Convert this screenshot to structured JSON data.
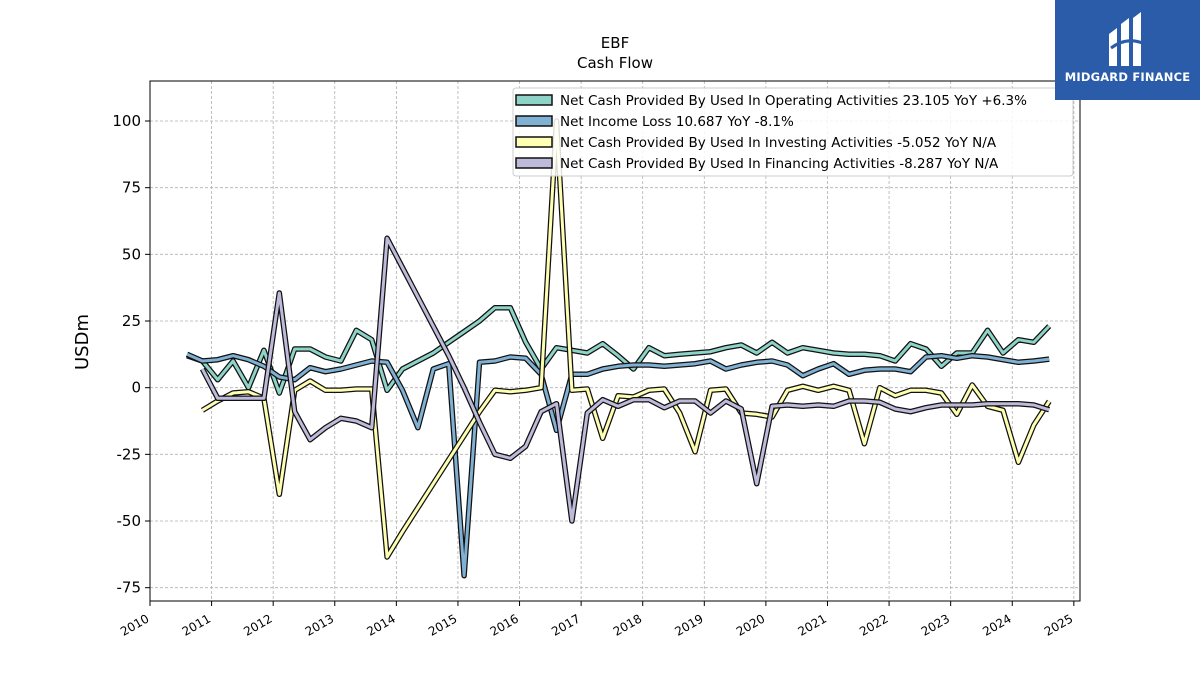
{
  "chart_data": {
    "type": "line",
    "title": "EBF",
    "subtitle": "Cash Flow",
    "ylabel": "USDm",
    "xlabel": "",
    "xlim": [
      2010.0,
      2025.1
    ],
    "ylim": [
      -80,
      115
    ],
    "x_ticks": [
      2010,
      2011,
      2012,
      2013,
      2014,
      2015,
      2016,
      2017,
      2018,
      2019,
      2020,
      2021,
      2022,
      2023,
      2024,
      2025
    ],
    "y_ticks": [
      100,
      75,
      50,
      25,
      0,
      -25,
      -50,
      -75
    ],
    "grid": true,
    "legend_position": "top-right",
    "series": [
      {
        "name": "Net Cash Provided By Used In Operating Activities  23.105 YoY +6.3%",
        "color": "#8dd3c7",
        "points": [
          [
            2010.6,
            12
          ],
          [
            2010.85,
            10
          ],
          [
            2011.1,
            3
          ],
          [
            2011.35,
            10
          ],
          [
            2011.6,
            0
          ],
          [
            2011.85,
            14
          ],
          [
            2012.1,
            -2
          ],
          [
            2012.35,
            14.5
          ],
          [
            2012.6,
            14.5
          ],
          [
            2012.85,
            11.5
          ],
          [
            2013.1,
            10
          ],
          [
            2013.35,
            21.5
          ],
          [
            2013.6,
            18
          ],
          [
            2013.85,
            -1
          ],
          [
            2014.1,
            7
          ],
          [
            2014.35,
            10
          ],
          [
            2014.6,
            13
          ],
          [
            2014.85,
            17
          ],
          [
            2015.1,
            21
          ],
          [
            2015.35,
            25
          ],
          [
            2015.6,
            30
          ],
          [
            2015.85,
            30
          ],
          [
            2016.1,
            17
          ],
          [
            2016.35,
            7
          ],
          [
            2016.6,
            15
          ],
          [
            2016.85,
            14
          ],
          [
            2017.1,
            13
          ],
          [
            2017.35,
            16.5
          ],
          [
            2017.6,
            12
          ],
          [
            2017.85,
            7
          ],
          [
            2018.1,
            15
          ],
          [
            2018.35,
            12
          ],
          [
            2018.6,
            12.5
          ],
          [
            2018.85,
            13
          ],
          [
            2019.1,
            13.5
          ],
          [
            2019.35,
            15
          ],
          [
            2019.6,
            16
          ],
          [
            2019.85,
            13
          ],
          [
            2020.1,
            17
          ],
          [
            2020.35,
            13
          ],
          [
            2020.6,
            15
          ],
          [
            2020.85,
            14
          ],
          [
            2021.1,
            13
          ],
          [
            2021.35,
            12.5
          ],
          [
            2021.6,
            12.5
          ],
          [
            2021.85,
            12
          ],
          [
            2022.1,
            10
          ],
          [
            2022.35,
            16.5
          ],
          [
            2022.6,
            14.5
          ],
          [
            2022.85,
            8
          ],
          [
            2023.1,
            13
          ],
          [
            2023.35,
            13
          ],
          [
            2023.6,
            21.5
          ],
          [
            2023.85,
            13
          ],
          [
            2024.1,
            18
          ],
          [
            2024.35,
            17
          ],
          [
            2024.6,
            23.1
          ]
        ]
      },
      {
        "name": "Net Income Loss  10.687 YoY -8.1%",
        "color": "#80b1d3",
        "points": [
          [
            2010.6,
            12.5
          ],
          [
            2010.85,
            10
          ],
          [
            2011.1,
            10.5
          ],
          [
            2011.35,
            12
          ],
          [
            2011.6,
            10.5
          ],
          [
            2011.85,
            8
          ],
          [
            2012.1,
            4
          ],
          [
            2012.35,
            3
          ],
          [
            2012.6,
            7.5
          ],
          [
            2012.85,
            6
          ],
          [
            2013.1,
            7
          ],
          [
            2013.35,
            8.5
          ],
          [
            2013.6,
            10
          ],
          [
            2013.85,
            9.5
          ],
          [
            2014.1,
            -1
          ],
          [
            2014.35,
            -15
          ],
          [
            2014.6,
            7
          ],
          [
            2014.85,
            9
          ],
          [
            2015.1,
            -70.5
          ],
          [
            2015.35,
            9.5
          ],
          [
            2015.6,
            10
          ],
          [
            2015.85,
            11.5
          ],
          [
            2016.1,
            11
          ],
          [
            2016.35,
            5
          ],
          [
            2016.6,
            -16
          ],
          [
            2016.85,
            5
          ],
          [
            2017.1,
            5
          ],
          [
            2017.35,
            7
          ],
          [
            2017.6,
            8
          ],
          [
            2017.85,
            8.5
          ],
          [
            2018.1,
            8.5
          ],
          [
            2018.35,
            8
          ],
          [
            2018.6,
            8.5
          ],
          [
            2018.85,
            9
          ],
          [
            2019.1,
            10
          ],
          [
            2019.35,
            7
          ],
          [
            2019.6,
            8.5
          ],
          [
            2019.85,
            9.5
          ],
          [
            2020.1,
            10
          ],
          [
            2020.35,
            8.5
          ],
          [
            2020.6,
            4.5
          ],
          [
            2020.85,
            7
          ],
          [
            2021.1,
            9
          ],
          [
            2021.35,
            5
          ],
          [
            2021.6,
            6.5
          ],
          [
            2021.85,
            7
          ],
          [
            2022.1,
            7
          ],
          [
            2022.35,
            6
          ],
          [
            2022.6,
            11.5
          ],
          [
            2022.85,
            12
          ],
          [
            2023.1,
            11
          ],
          [
            2023.35,
            12
          ],
          [
            2023.6,
            11.5
          ],
          [
            2023.85,
            10.5
          ],
          [
            2024.1,
            9.5
          ],
          [
            2024.35,
            10
          ],
          [
            2024.6,
            10.7
          ]
        ]
      },
      {
        "name": "Net Cash Provided By Used In Investing Activities  -5.052 YoY N/A",
        "color": "#ffffb3",
        "points": [
          [
            2010.85,
            -8.5
          ],
          [
            2011.1,
            -5
          ],
          [
            2011.35,
            -2
          ],
          [
            2011.6,
            -1.5
          ],
          [
            2011.85,
            -4
          ],
          [
            2012.1,
            -40
          ],
          [
            2012.35,
            -1
          ],
          [
            2012.6,
            2.5
          ],
          [
            2012.85,
            -1
          ],
          [
            2013.1,
            -1
          ],
          [
            2013.35,
            -0.5
          ],
          [
            2013.6,
            -0.5
          ],
          [
            2013.85,
            -63.5
          ],
          [
            2014.1,
            -54
          ],
          [
            2014.35,
            -45
          ],
          [
            2014.6,
            -36
          ],
          [
            2014.85,
            -27
          ],
          [
            2015.1,
            -18
          ],
          [
            2015.35,
            -9
          ],
          [
            2015.6,
            -1
          ],
          [
            2015.85,
            -1.5
          ],
          [
            2016.1,
            -1
          ],
          [
            2016.35,
            0
          ],
          [
            2016.6,
            100
          ],
          [
            2016.85,
            -1
          ],
          [
            2017.1,
            -0.5
          ],
          [
            2017.35,
            -19
          ],
          [
            2017.6,
            -3
          ],
          [
            2017.85,
            -3.5
          ],
          [
            2018.1,
            -1
          ],
          [
            2018.35,
            -0.5
          ],
          [
            2018.6,
            -9.5
          ],
          [
            2018.85,
            -24
          ],
          [
            2019.1,
            -1
          ],
          [
            2019.35,
            -0.5
          ],
          [
            2019.6,
            -9.5
          ],
          [
            2019.85,
            -10
          ],
          [
            2020.1,
            -11
          ],
          [
            2020.35,
            -1
          ],
          [
            2020.6,
            0.5
          ],
          [
            2020.85,
            -1
          ],
          [
            2021.1,
            0.5
          ],
          [
            2021.35,
            -1
          ],
          [
            2021.6,
            -21
          ],
          [
            2021.85,
            0
          ],
          [
            2022.1,
            -3
          ],
          [
            2022.35,
            -1
          ],
          [
            2022.6,
            -1
          ],
          [
            2022.85,
            -2
          ],
          [
            2023.1,
            -10
          ],
          [
            2023.35,
            1
          ],
          [
            2023.6,
            -7
          ],
          [
            2023.85,
            -8.5
          ],
          [
            2024.1,
            -28
          ],
          [
            2024.35,
            -14
          ],
          [
            2024.6,
            -5.1
          ]
        ]
      },
      {
        "name": "Net Cash Provided By Used In Financing Activities  -8.287 YoY N/A",
        "color": "#bebada",
        "points": [
          [
            2010.85,
            7
          ],
          [
            2011.1,
            -4
          ],
          [
            2011.35,
            -4
          ],
          [
            2011.6,
            -4
          ],
          [
            2011.85,
            -4
          ],
          [
            2012.1,
            35.5
          ],
          [
            2012.35,
            -9
          ],
          [
            2012.6,
            -19.5
          ],
          [
            2012.85,
            -15
          ],
          [
            2013.1,
            -11.5
          ],
          [
            2013.35,
            -12.5
          ],
          [
            2013.6,
            -15
          ],
          [
            2013.85,
            56
          ],
          [
            2014.1,
            45
          ],
          [
            2014.35,
            34
          ],
          [
            2014.6,
            23
          ],
          [
            2014.85,
            12
          ],
          [
            2015.1,
            0
          ],
          [
            2015.35,
            -13
          ],
          [
            2015.6,
            -25
          ],
          [
            2015.85,
            -26.5
          ],
          [
            2016.1,
            -22
          ],
          [
            2016.35,
            -9
          ],
          [
            2016.6,
            -6
          ],
          [
            2016.85,
            -50
          ],
          [
            2017.1,
            -9.5
          ],
          [
            2017.35,
            -4.5
          ],
          [
            2017.6,
            -7
          ],
          [
            2017.85,
            -4.5
          ],
          [
            2018.1,
            -4.5
          ],
          [
            2018.35,
            -7.5
          ],
          [
            2018.6,
            -5
          ],
          [
            2018.85,
            -5
          ],
          [
            2019.1,
            -9.5
          ],
          [
            2019.35,
            -5
          ],
          [
            2019.6,
            -8
          ],
          [
            2019.85,
            -36
          ],
          [
            2020.1,
            -7
          ],
          [
            2020.35,
            -6.5
          ],
          [
            2020.6,
            -7
          ],
          [
            2020.85,
            -6.5
          ],
          [
            2021.1,
            -7
          ],
          [
            2021.35,
            -5
          ],
          [
            2021.6,
            -5
          ],
          [
            2021.85,
            -5.5
          ],
          [
            2022.1,
            -8
          ],
          [
            2022.35,
            -9
          ],
          [
            2022.6,
            -7.5
          ],
          [
            2022.85,
            -6.5
          ],
          [
            2023.1,
            -6.5
          ],
          [
            2023.35,
            -6.5
          ],
          [
            2023.6,
            -6
          ],
          [
            2023.85,
            -6
          ],
          [
            2024.1,
            -6
          ],
          [
            2024.35,
            -6.5
          ],
          [
            2024.6,
            -8.3
          ]
        ]
      }
    ]
  },
  "logo": {
    "text": "MIDGARD FINANCE",
    "background": "#2a5caa"
  }
}
